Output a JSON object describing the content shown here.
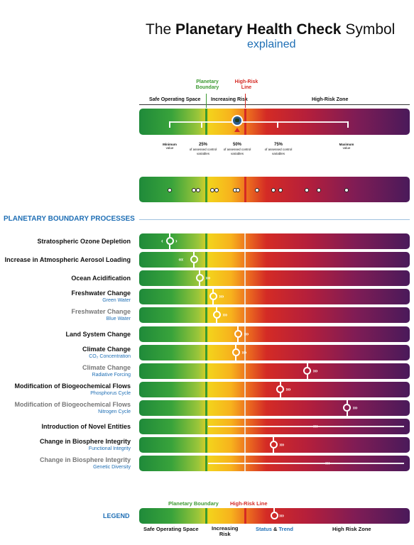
{
  "header": {
    "title_pre": "The ",
    "title_bold": "Planetary",
    "title_mid": " Health Check",
    "title_post": " Symbol",
    "subtitle": "explained"
  },
  "top_symbol": {
    "planetary_boundary_label_1": "Planetary",
    "planetary_boundary_label_2": "Boundary",
    "high_risk_line_label_1": "High-Risk",
    "high_risk_line_label_2": "Line",
    "zone_safe": "Safe Operating Space",
    "zone_increasing": "Increasing Risk",
    "zone_high": "High-Risk Zone",
    "scale": [
      {
        "label": "Minimum",
        "sub": "value"
      },
      {
        "label": "25%",
        "sub": "of assessed control variables"
      },
      {
        "label": "50%",
        "sub": "of assessed control variables"
      },
      {
        "label": "75%",
        "sub": "of assessed control variables"
      },
      {
        "label": "Maximum",
        "sub": "value"
      }
    ]
  },
  "section": {
    "title": "PLANETARY BOUNDARY PROCESSES"
  },
  "processes": [
    {
      "name": "Stratospheric Ozone Depletion",
      "sub": "",
      "gray": false,
      "position": 0.113,
      "trend": "left-right"
    },
    {
      "name": "Increase in Atmospheric Aerosol Loading",
      "sub": "",
      "gray": false,
      "position": 0.203,
      "trend": "left"
    },
    {
      "name": "Ocean Acidification",
      "sub": "",
      "gray": false,
      "position": 0.224,
      "trend": "right"
    },
    {
      "name": "Freshwater Change",
      "sub": "Green Water",
      "gray": false,
      "position": 0.274,
      "trend": "right"
    },
    {
      "name": "Freshwater Change",
      "sub": "Blue Water",
      "gray": true,
      "position": 0.287,
      "trend": "right"
    },
    {
      "name": "Land System Change",
      "sub": "",
      "gray": false,
      "position": 0.366,
      "trend": "right"
    },
    {
      "name": "Climate Change",
      "sub": "CO₂ Concentration",
      "gray": false,
      "position": 0.358,
      "trend": "right"
    },
    {
      "name": "Climate Change",
      "sub": "Radiative Forcing",
      "gray": true,
      "position": 0.621,
      "trend": "right"
    },
    {
      "name": "Modification of Biogeochemical Flows",
      "sub": "Phosphorus Cycle",
      "gray": false,
      "position": 0.521,
      "trend": "right"
    },
    {
      "name": "Modification of Biogeochemical Flows",
      "sub": "Nitrogen Cycle",
      "gray": true,
      "position": 0.768,
      "trend": "right"
    },
    {
      "name": "Introduction of Novel Entities",
      "sub": "",
      "gray": false,
      "position": null,
      "trend": "right-line"
    },
    {
      "name": "Change in Biosphere Integrity",
      "sub": "Functional Integrity",
      "gray": false,
      "position": 0.497,
      "trend": "right"
    },
    {
      "name": "Change in Biosphere Integrity",
      "sub": "Genetic Diversity",
      "gray": true,
      "position": null,
      "trend": "right-line"
    }
  ],
  "legend": {
    "title": "LEGEND",
    "planetary_boundary": "Planetary Boundary",
    "high_risk_line": "High-Risk Line",
    "safe": "Safe Operating Space",
    "increasing_1": "Increasing",
    "increasing_2": "Risk",
    "status": "Status",
    "amp": " & ",
    "trend": "Trend",
    "high": "High Risk Zone"
  },
  "colors": {
    "green": "#3d9a32",
    "red": "#d52a24",
    "blue": "#1f6fb5"
  }
}
